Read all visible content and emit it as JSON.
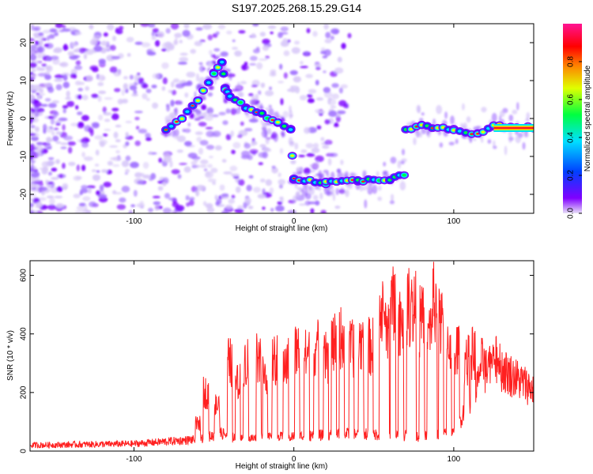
{
  "title": "S197.2025.268.15.29.G14",
  "chart_data": [
    {
      "type": "heatmap",
      "xlabel": "Height of straight line (km)",
      "ylabel": "Frequency (Hz)",
      "xlim": [
        -165,
        150
      ],
      "ylim": [
        -25,
        25
      ],
      "xticks": [
        -100,
        0,
        100
      ],
      "yticks": [
        -20,
        -10,
        0,
        10,
        20
      ],
      "grid": false,
      "colorbar": {
        "label": "Normalized spectral amplitude",
        "range": [
          0,
          1
        ],
        "ticks": [
          "0.0",
          "0.2",
          "0.4",
          "0.6",
          "0.8"
        ],
        "colors": [
          "#e8e0f8",
          "#8000ff",
          "#0040ff",
          "#00e0ff",
          "#00ff40",
          "#e0ff00",
          "#ff8000",
          "#ff0000",
          "#ff1493"
        ]
      },
      "ridge": {
        "x": [
          -80,
          -70,
          -60,
          -50,
          -45,
          -43,
          -40,
          -30,
          -20,
          -10,
          -2,
          0,
          20,
          40,
          60,
          69,
          70,
          80,
          100,
          115,
          125,
          150
        ],
        "y": [
          -3,
          0,
          5,
          12,
          15,
          8,
          6,
          3,
          1,
          -1,
          -3,
          -16,
          -17,
          -16.5,
          -16,
          -15,
          -3,
          -2,
          -3,
          -4,
          -2,
          -2.5
        ]
      }
    },
    {
      "type": "line",
      "xlabel": "Height of straight line (km)",
      "ylabel": "SNR (10 * v/v)",
      "xlim": [
        -165,
        150
      ],
      "ylim": [
        0,
        650
      ],
      "xticks": [
        -100,
        0,
        100
      ],
      "yticks": [
        0,
        200,
        400,
        600
      ],
      "color": "#ff2020",
      "baseline": {
        "x": [
          -165,
          -100,
          -60,
          -45,
          -35,
          -20,
          0,
          20,
          40,
          60,
          80,
          100,
          110,
          125,
          130,
          150
        ],
        "y": [
          20,
          25,
          40,
          60,
          40,
          45,
          50,
          55,
          60,
          55,
          50,
          60,
          180,
          320,
          280,
          210
        ]
      },
      "peaks": {
        "x": [
          -60,
          -55,
          -48,
          -40,
          -35,
          -30,
          -22,
          -18,
          -12,
          -5,
          2,
          8,
          14,
          20,
          25,
          30,
          36,
          42,
          48,
          55,
          58,
          62,
          67,
          72,
          75,
          80,
          85,
          88,
          92,
          97,
          102,
          108,
          112,
          118,
          123,
          127
        ],
        "y": [
          120,
          260,
          200,
          390,
          300,
          400,
          420,
          340,
          400,
          390,
          440,
          420,
          460,
          410,
          470,
          500,
          450,
          480,
          460,
          600,
          560,
          640,
          590,
          640,
          620,
          570,
          520,
          650,
          560,
          480,
          440,
          400,
          430,
          390,
          350,
          330
        ]
      }
    }
  ]
}
